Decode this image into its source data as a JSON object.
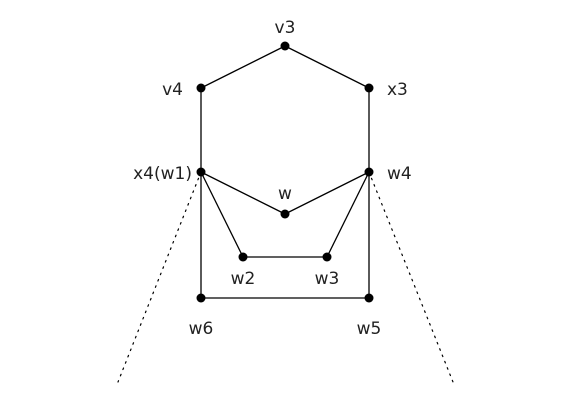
{
  "diagram": {
    "vertices": [
      {
        "id": "v3",
        "label": "v3"
      },
      {
        "id": "v4",
        "label": "v4"
      },
      {
        "id": "x3",
        "label": "x3"
      },
      {
        "id": "x4",
        "label": "x4(w1)"
      },
      {
        "id": "w4",
        "label": "w4"
      },
      {
        "id": "w",
        "label": "w"
      },
      {
        "id": "w2",
        "label": "w2"
      },
      {
        "id": "w3",
        "label": "w3"
      },
      {
        "id": "w6",
        "label": "w6"
      },
      {
        "id": "w5",
        "label": "w5"
      }
    ],
    "edges": [
      {
        "from": "v3",
        "to": "v4",
        "style": "solid"
      },
      {
        "from": "v3",
        "to": "x3",
        "style": "solid"
      },
      {
        "from": "v4",
        "to": "x4",
        "style": "solid"
      },
      {
        "from": "x3",
        "to": "w4",
        "style": "solid"
      },
      {
        "from": "x4",
        "to": "w",
        "style": "solid"
      },
      {
        "from": "w",
        "to": "w4",
        "style": "solid"
      },
      {
        "from": "x4",
        "to": "w2",
        "style": "solid"
      },
      {
        "from": "w2",
        "to": "w3",
        "style": "solid"
      },
      {
        "from": "w3",
        "to": "w4",
        "style": "solid"
      },
      {
        "from": "x4",
        "to": "w6",
        "style": "solid"
      },
      {
        "from": "w6",
        "to": "w5",
        "style": "solid"
      },
      {
        "from": "w5",
        "to": "w4",
        "style": "solid"
      },
      {
        "from": "x4",
        "to": "open-left",
        "style": "dotted"
      },
      {
        "from": "w4",
        "to": "open-right",
        "style": "dotted"
      }
    ]
  }
}
